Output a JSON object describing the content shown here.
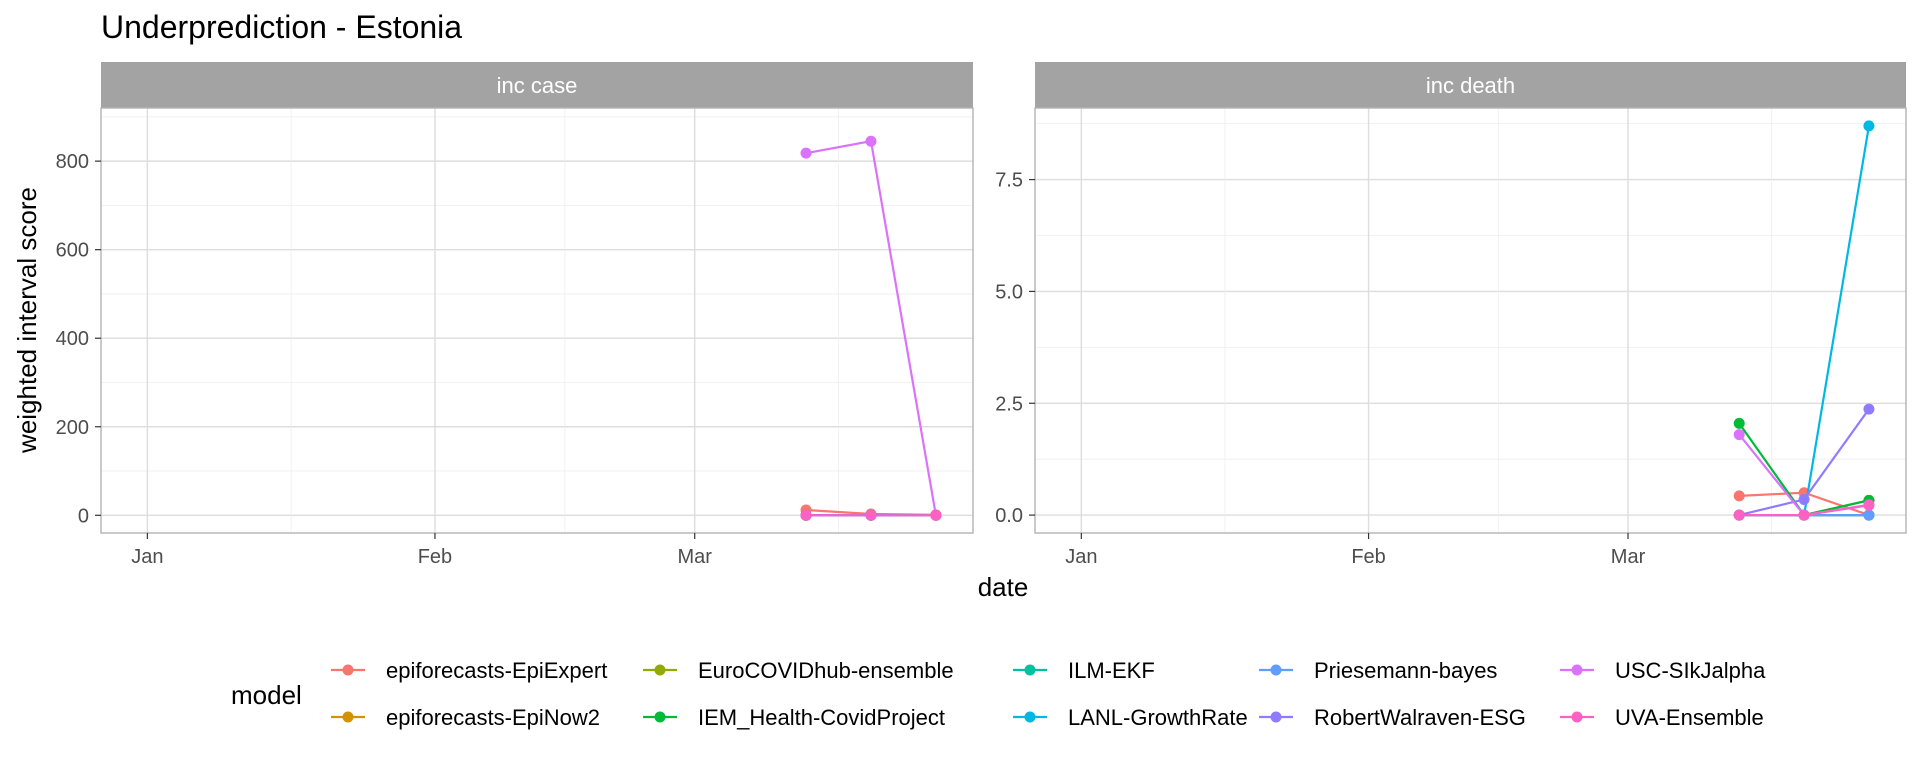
{
  "title": "Underprediction - Estonia",
  "ylabel": "weighted interval score",
  "xlabel": "date",
  "legend_title": "model",
  "chart_data": [
    {
      "type": "line",
      "panel": "inc case",
      "x_ticks": [
        "Jan",
        "Feb",
        "Mar"
      ],
      "y_ticks": [
        "0",
        "200",
        "400",
        "600",
        "800"
      ],
      "ylim": [
        -40,
        920
      ],
      "x_dates": [
        "2021-03-13",
        "2021-03-20",
        "2021-03-27"
      ],
      "series": [
        {
          "name": "epiforecasts-EpiExpert",
          "color": "#F8766D",
          "values": [
            12,
            3,
            1
          ]
        },
        {
          "name": "epiforecasts-EpiNow2",
          "color": "#D39200",
          "values": [
            0,
            0,
            0
          ]
        },
        {
          "name": "EuroCOVIDhub-ensemble",
          "color": "#93AA00",
          "values": [
            0,
            0,
            0
          ]
        },
        {
          "name": "IEM_Health-CovidProject",
          "color": "#00BA38",
          "values": [
            0,
            0,
            0
          ]
        },
        {
          "name": "ILM-EKF",
          "color": "#00C19F",
          "values": [
            0,
            0,
            0
          ]
        },
        {
          "name": "LANL-GrowthRate",
          "color": "#00B9E3",
          "values": [
            0,
            0,
            0
          ]
        },
        {
          "name": "Priesemann-bayes",
          "color": "#619CFF",
          "values": [
            0,
            0,
            0
          ]
        },
        {
          "name": "RobertWalraven-ESG",
          "color": "#8F7BFF",
          "values": [
            0,
            0,
            0
          ]
        },
        {
          "name": "USC-SIkJalpha",
          "color": "#DB72FB",
          "values": [
            818,
            845,
            0
          ]
        },
        {
          "name": "UVA-Ensemble",
          "color": "#FF61C3",
          "values": [
            0,
            0,
            0
          ]
        }
      ],
      "grid": true
    },
    {
      "type": "line",
      "panel": "inc death",
      "x_ticks": [
        "Jan",
        "Feb",
        "Mar"
      ],
      "y_ticks": [
        "0.0",
        "2.5",
        "5.0",
        "7.5"
      ],
      "ylim": [
        -0.4,
        9.1
      ],
      "x_dates": [
        "2021-03-13",
        "2021-03-20",
        "2021-03-27"
      ],
      "series": [
        {
          "name": "epiforecasts-EpiExpert",
          "color": "#F8766D",
          "values": [
            0.43,
            0.5,
            0.0
          ]
        },
        {
          "name": "epiforecasts-EpiNow2",
          "color": "#D39200",
          "values": [
            0.0,
            0.0,
            0.0
          ]
        },
        {
          "name": "EuroCOVIDhub-ensemble",
          "color": "#93AA00",
          "values": [
            0.0,
            0.0,
            0.33
          ]
        },
        {
          "name": "IEM_Health-CovidProject",
          "color": "#00BA38",
          "values": [
            2.05,
            0.0,
            0.33
          ]
        },
        {
          "name": "ILM-EKF",
          "color": "#00C19F",
          "values": [
            0.0,
            0.0,
            0.0
          ]
        },
        {
          "name": "LANL-GrowthRate",
          "color": "#00B9E3",
          "values": [
            0.0,
            0.0,
            8.7
          ]
        },
        {
          "name": "Priesemann-bayes",
          "color": "#619CFF",
          "values": [
            0.0,
            0.0,
            0.0
          ]
        },
        {
          "name": "RobertWalraven-ESG",
          "color": "#8F7BFF",
          "values": [
            0.0,
            0.35,
            2.37
          ]
        },
        {
          "name": "USC-SIkJalpha",
          "color": "#DB72FB",
          "values": [
            1.8,
            0.0,
            0.23
          ]
        },
        {
          "name": "UVA-Ensemble",
          "color": "#FF61C3",
          "values": [
            0.0,
            0.0,
            0.22
          ]
        }
      ],
      "grid": true
    }
  ],
  "legend": [
    {
      "name": "epiforecasts-EpiExpert",
      "color": "#F8766D"
    },
    {
      "name": "epiforecasts-EpiNow2",
      "color": "#D39200"
    },
    {
      "name": "EuroCOVIDhub-ensemble",
      "color": "#93AA00"
    },
    {
      "name": "IEM_Health-CovidProject",
      "color": "#00BA38"
    },
    {
      "name": "ILM-EKF",
      "color": "#00C19F"
    },
    {
      "name": "LANL-GrowthRate",
      "color": "#00B9E3"
    },
    {
      "name": "Priesemann-bayes",
      "color": "#619CFF"
    },
    {
      "name": "RobertWalraven-ESG",
      "color": "#8F7BFF"
    },
    {
      "name": "USC-SIkJalpha",
      "color": "#DB72FB"
    },
    {
      "name": "UVA-Ensemble",
      "color": "#FF61C3"
    }
  ]
}
